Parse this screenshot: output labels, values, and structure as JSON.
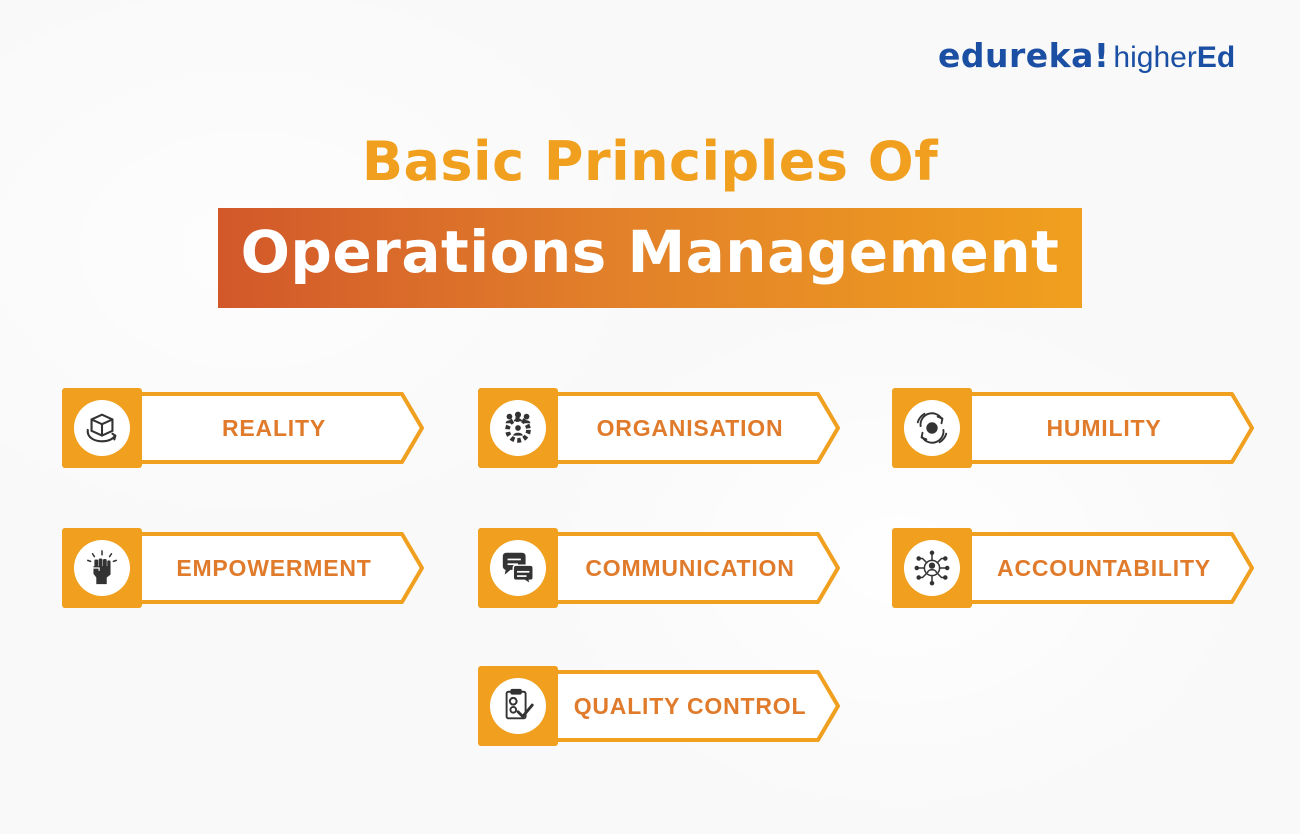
{
  "brand": {
    "name": "edureka!",
    "suffix_light": "higher",
    "suffix_bold": "Ed",
    "color": "#1a4fa3"
  },
  "title": {
    "line1": "Basic Principles Of",
    "line2": "Operations Management"
  },
  "colors": {
    "accent": "#f0a01e",
    "accent_dark": "#d2582a",
    "label": "#e07b2c",
    "icon": "#333333"
  },
  "principles": [
    {
      "label": "REALITY",
      "icon": "box-rotate-icon"
    },
    {
      "label": "ORGANISATION",
      "icon": "team-gear-icon"
    },
    {
      "label": "HUMILITY",
      "icon": "cycle-arrows-icon"
    },
    {
      "label": "EMPOWERMENT",
      "icon": "raised-fist-icon"
    },
    {
      "label": "COMMUNICATION",
      "icon": "chat-bubbles-icon"
    },
    {
      "label": "ACCOUNTABILITY",
      "icon": "person-network-icon"
    },
    {
      "label": "QUALITY CONTROL",
      "icon": "checklist-gear-icon"
    }
  ]
}
